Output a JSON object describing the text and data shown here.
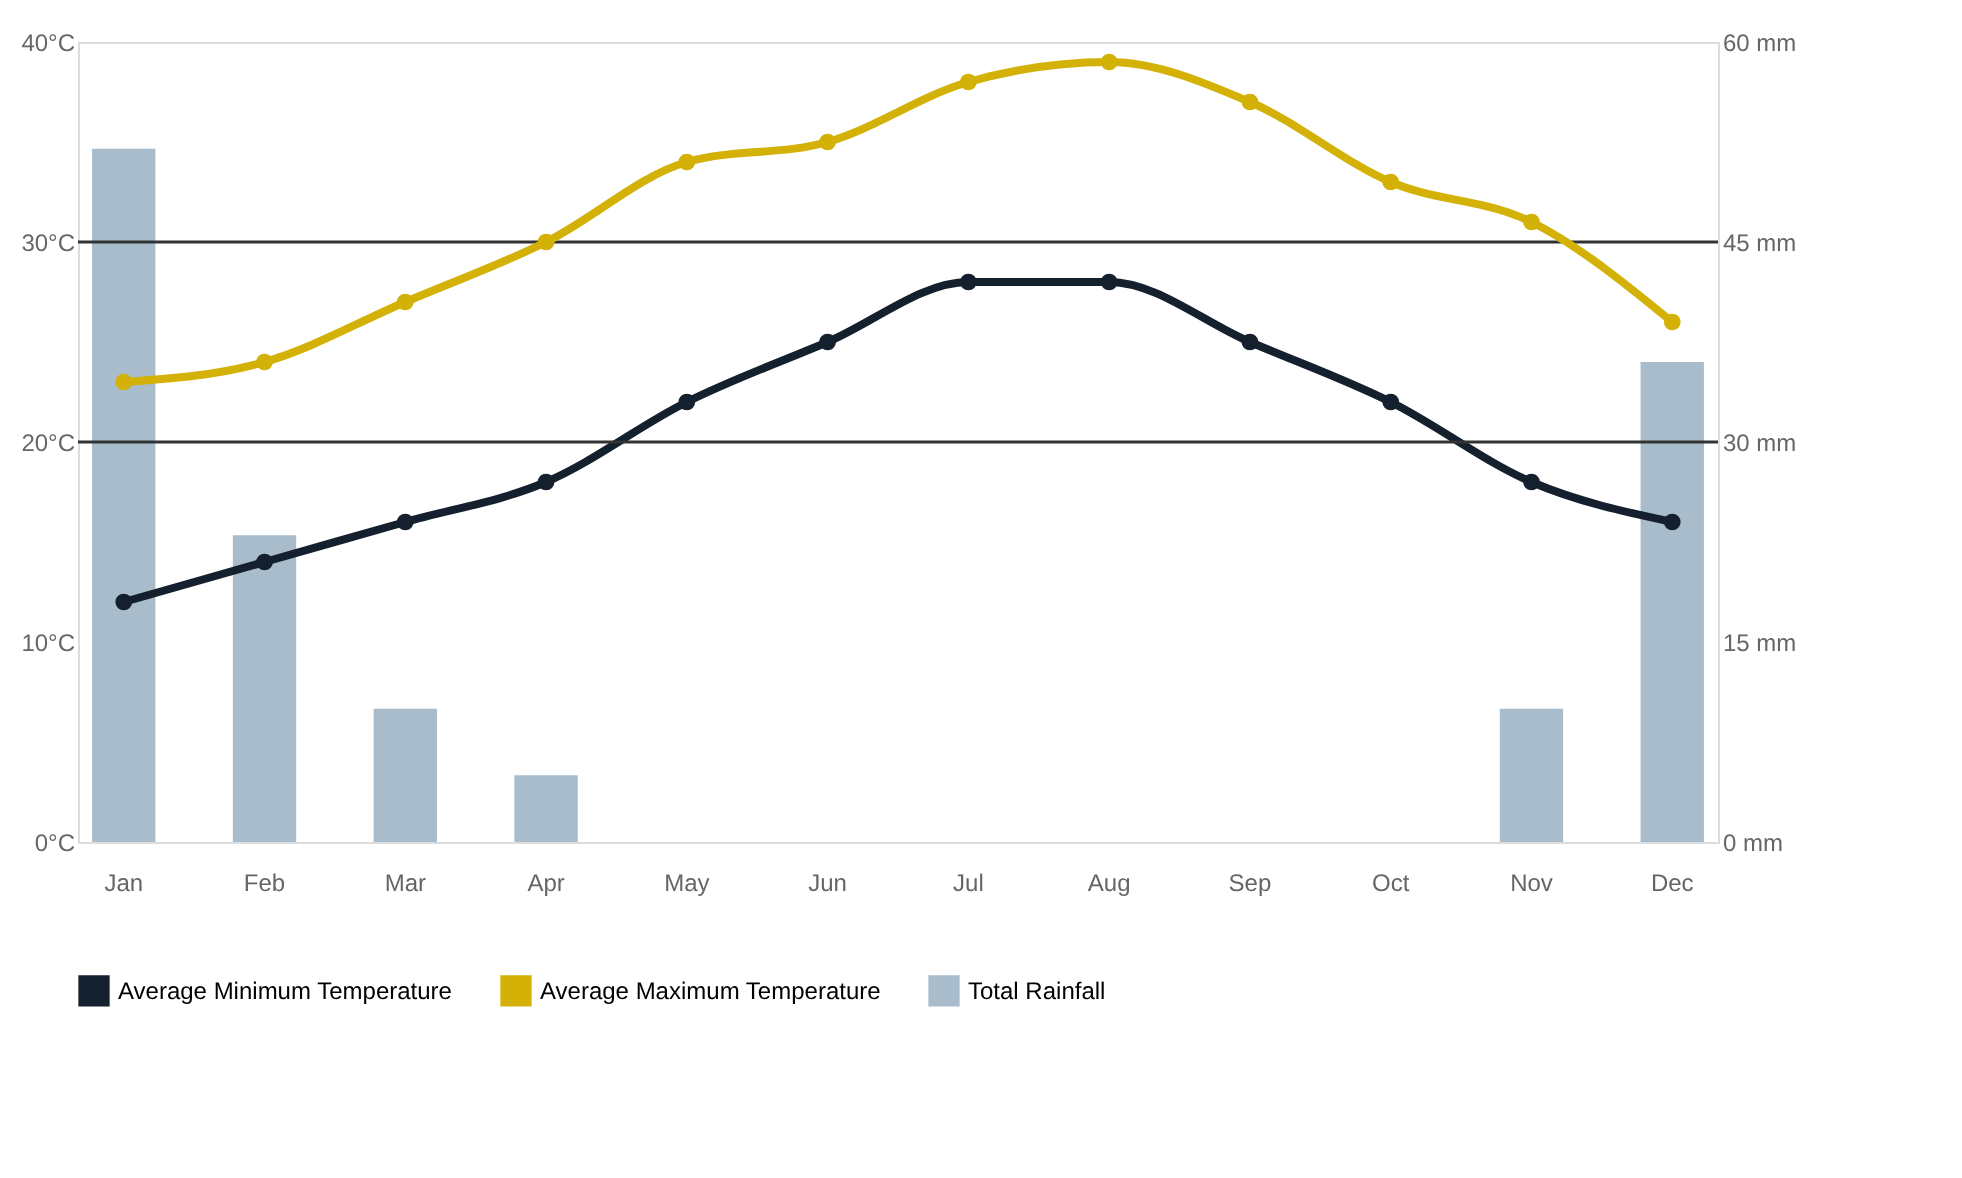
{
  "chart_data": {
    "type": "line",
    "categories": [
      "Jan",
      "Feb",
      "Mar",
      "Apr",
      "May",
      "Jun",
      "Jul",
      "Aug",
      "Sep",
      "Oct",
      "Nov",
      "Dec"
    ],
    "series": [
      {
        "name": "Average Minimum Temperature",
        "color": "#14202e",
        "values": [
          12,
          14,
          16,
          18,
          22,
          25,
          28,
          28,
          25,
          22,
          18,
          16
        ]
      },
      {
        "name": "Average Maximum Temperature",
        "color": "#d4b106",
        "values": [
          23,
          24,
          27,
          30,
          34,
          35,
          38,
          39,
          37,
          33,
          31,
          26
        ]
      },
      {
        "name": "Total Rainfall",
        "type": "bar",
        "axis": "y2",
        "color": "#a9bccb",
        "values": [
          52,
          23,
          10,
          5,
          0,
          0,
          0,
          0,
          0,
          0,
          10,
          36
        ]
      }
    ],
    "ylim": [
      0,
      40
    ],
    "yticks": [
      {
        "value": 0,
        "label": "0°C"
      },
      {
        "value": 10,
        "label": "10°C"
      },
      {
        "value": 20,
        "label": "20°C"
      },
      {
        "value": 30,
        "label": "30°C"
      },
      {
        "value": 40,
        "label": "40°C"
      }
    ],
    "y2lim": [
      0,
      60
    ],
    "y2ticks": [
      {
        "value": 0,
        "label": "0 mm"
      },
      {
        "value": 15,
        "label": "15 mm"
      },
      {
        "value": 30,
        "label": "30 mm"
      },
      {
        "value": 45,
        "label": "45 mm"
      },
      {
        "value": 60,
        "label": "60 mm"
      }
    ],
    "ref_lines": [
      {
        "axis": "y",
        "value": 20,
        "color": "#333333"
      },
      {
        "axis": "y",
        "value": 30,
        "color": "#333333"
      }
    ],
    "marker": "circle",
    "line_style": "solid",
    "legend": "bottom left"
  }
}
